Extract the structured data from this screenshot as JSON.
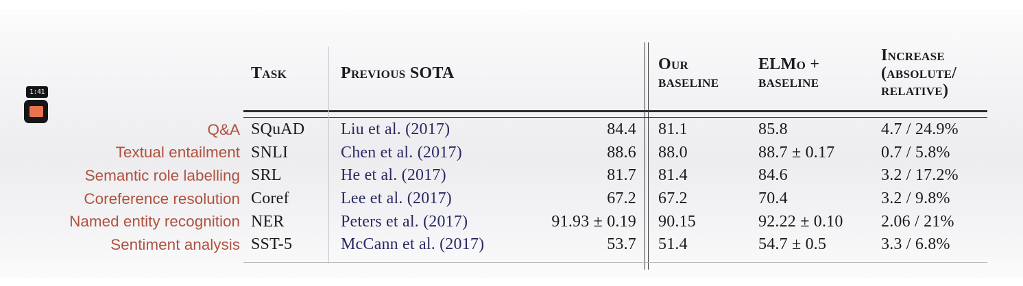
{
  "video_player": {
    "timestamp": "1:41",
    "stop_button_color": "#e8744f"
  },
  "colors": {
    "task_label_red": "#b0513e",
    "citation_navy": "#2a2a66",
    "rule_dark": "#2b2b2b"
  },
  "table": {
    "headers": {
      "task": "Task",
      "previous_sota": "Previous SOTA",
      "our_baseline": "Our\nbaseline",
      "elmo_baseline": "ELMo +\nbaseline",
      "increase": "Increase\n(absolute/\nrelative)"
    },
    "rows": [
      {
        "label": "Q&A",
        "task": "SQuAD",
        "sota_ref": "Liu et al. (2017)",
        "sota_value": "84.4",
        "our_baseline": "81.1",
        "elmo_baseline": "85.8",
        "increase": "4.7 / 24.9%"
      },
      {
        "label": "Textual entailment",
        "task": "SNLI",
        "sota_ref": "Chen et al. (2017)",
        "sota_value": "88.6",
        "our_baseline": "88.0",
        "elmo_baseline": "88.7 ± 0.17",
        "increase": "0.7 / 5.8%"
      },
      {
        "label": "Semantic role labelling",
        "task": "SRL",
        "sota_ref": "He et al. (2017)",
        "sota_value": "81.7",
        "our_baseline": "81.4",
        "elmo_baseline": "84.6",
        "increase": "3.2 / 17.2%"
      },
      {
        "label": "Coreference resolution",
        "task": "Coref",
        "sota_ref": "Lee et al. (2017)",
        "sota_value": "67.2",
        "our_baseline": "67.2",
        "elmo_baseline": "70.4",
        "increase": "3.2 / 9.8%"
      },
      {
        "label": "Named entity recognition",
        "task": "NER",
        "sota_ref": "Peters et al. (2017)",
        "sota_value": "91.93 ± 0.19",
        "our_baseline": "90.15",
        "elmo_baseline": "92.22 ± 0.10",
        "increase": "2.06 / 21%"
      },
      {
        "label": "Sentiment analysis",
        "task": "SST-5",
        "sota_ref": "McCann et al. (2017)",
        "sota_value": "53.7",
        "our_baseline": "51.4",
        "elmo_baseline": "54.7 ± 0.5",
        "increase": "3.3 / 6.8%"
      }
    ]
  }
}
